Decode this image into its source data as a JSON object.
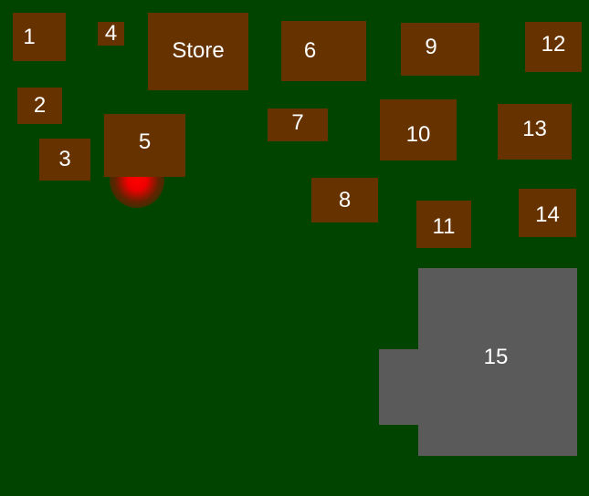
{
  "map": {
    "background_color": "#004400",
    "building_color": "#663300",
    "lot_color": "#5a5a5a",
    "marker_color": "#ff0000",
    "buildings": [
      {
        "id": "1",
        "label": "1"
      },
      {
        "id": "2",
        "label": "2"
      },
      {
        "id": "3",
        "label": "3"
      },
      {
        "id": "4",
        "label": "4"
      },
      {
        "id": "store",
        "label": "Store"
      },
      {
        "id": "5",
        "label": "5"
      },
      {
        "id": "6",
        "label": "6"
      },
      {
        "id": "7",
        "label": "7"
      },
      {
        "id": "8",
        "label": "8"
      },
      {
        "id": "9",
        "label": "9"
      },
      {
        "id": "10",
        "label": "10"
      },
      {
        "id": "11",
        "label": "11"
      },
      {
        "id": "12",
        "label": "12"
      },
      {
        "id": "13",
        "label": "13"
      },
      {
        "id": "14",
        "label": "14"
      }
    ],
    "lot": {
      "label": "15"
    }
  }
}
